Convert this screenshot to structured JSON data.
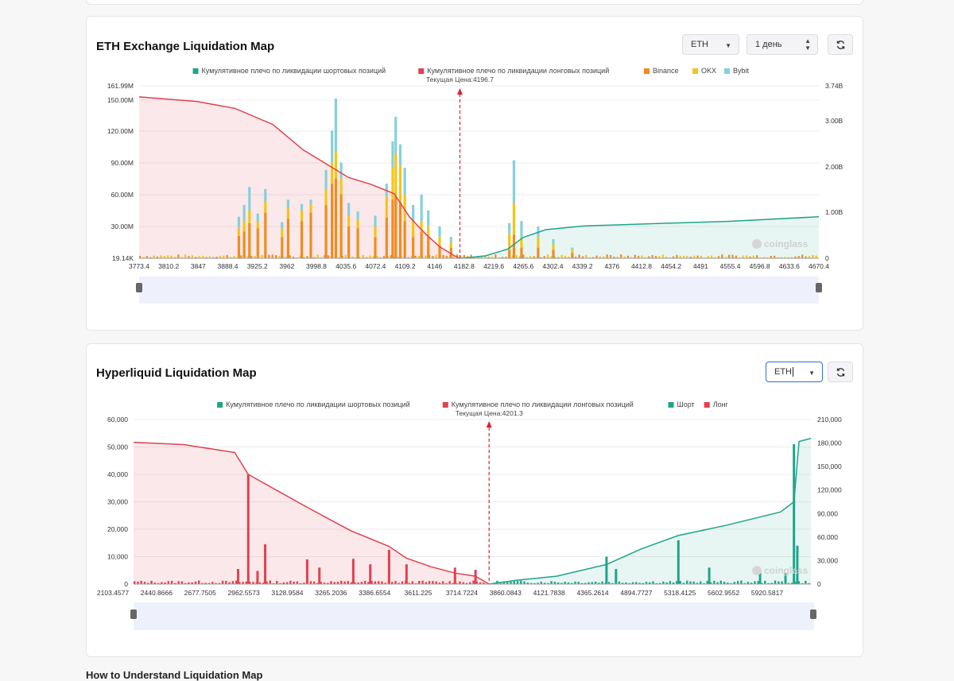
{
  "colors": {
    "short_cum": "#1ea58c",
    "long_cum": "#e0414f",
    "binance": "#f08c1e",
    "okx": "#f5c518",
    "bybit": "#86d0dc",
    "price_line": "#e02030",
    "short_bar": "#1ea58c",
    "long_bar": "#e0414f"
  },
  "icons": {
    "refresh": "refresh-icon",
    "dropdown": "caret-down-icon",
    "stepper": "up-down-stepper-icon",
    "watermark": "coinglass-logo"
  },
  "watermark": "coinglass",
  "bottom_heading": "How to Understand Liquidation Map",
  "charts": [
    {
      "title": "ETH Exchange Liquidation Map",
      "controls": {
        "symbol": "ETH",
        "period": "1 день"
      },
      "legend": [
        {
          "label": "Кумулятивное плечо по ликвидации шортовых позиций",
          "color": "#1ea58c"
        },
        {
          "label": "Кумулятивное плечо по ликвидации лонговых позиций",
          "color": "#e0414f"
        },
        {
          "label": "Binance",
          "color": "#f08c1e"
        },
        {
          "label": "OKX",
          "color": "#f5c518"
        },
        {
          "label": "Bybit",
          "color": "#86d0dc"
        }
      ],
      "current_price_label": "Текущая Цена:4196.7",
      "y_left_ticks": [
        "161.99M",
        "150.00M",
        "120.00M",
        "90.00M",
        "60.00M",
        "30.00M",
        "19.14K"
      ],
      "y_right_ticks": [
        "3.74B",
        "3.00B",
        "2.00B",
        "1.00B",
        "0"
      ],
      "x_ticks": [
        "3773.4",
        "3810.2",
        "3847",
        "3888.4",
        "3925.2",
        "3962",
        "3998.8",
        "4035.6",
        "4072.4",
        "4109.2",
        "4146",
        "4182.8",
        "4219.6",
        "4265.6",
        "4302.4",
        "4339.2",
        "4376",
        "4412.8",
        "4454.2",
        "4491",
        "4555.4",
        "4596.8",
        "4633.6",
        "4670.4"
      ]
    },
    {
      "title": "Hyperliquid Liquidation Map",
      "controls": {
        "symbol": "ETH"
      },
      "legend": [
        {
          "label": "Кумулятивное плечо по ликвидации шортовых позиций",
          "color": "#1ea58c"
        },
        {
          "label": "Кумулятивное плечо по ликвидации лонговых позиций",
          "color": "#e0414f"
        },
        {
          "label": "Шорт",
          "color": "#1ea58c"
        },
        {
          "label": "Лонг",
          "color": "#e0414f"
        }
      ],
      "current_price_label": "Текущая Цена:4201.3",
      "y_left_ticks": [
        "60,000",
        "50,000",
        "40,000",
        "30,000",
        "20,000",
        "10,000",
        "0"
      ],
      "y_right_ticks": [
        "210,000",
        "180,000",
        "150,000",
        "120,000",
        "90,000",
        "60,000",
        "30,000",
        "0"
      ],
      "x_ticks": [
        "2103.4577",
        "2440.8666",
        "2677.7505",
        "2962.5573",
        "3128.9584",
        "3265.2036",
        "3386.6554",
        "3611.225",
        "3714.7224",
        "3860.0843",
        "4121.7838",
        "4365.2614",
        "4894.7727",
        "5318.4125",
        "5602.9552",
        "5920.5817"
      ]
    }
  ],
  "chart_data": [
    {
      "type": "bar",
      "title": "ETH Exchange Liquidation Map",
      "stacked": true,
      "current_price": 4196.7,
      "x_range": [
        3773.4,
        4670.4
      ],
      "ylim_left": [
        0,
        161990000
      ],
      "ylim_right": [
        0,
        3740000000
      ],
      "series": [
        {
          "name": "Binance",
          "bins": [
            [
              3905,
              21
            ],
            [
              3912,
              25
            ],
            [
              3919,
              33
            ],
            [
              3930,
              28
            ],
            [
              3940,
              43
            ],
            [
              3962,
              20
            ],
            [
              3970,
              37
            ],
            [
              3988,
              35
            ],
            [
              4000,
              43
            ],
            [
              4020,
              50
            ],
            [
              4028,
              70
            ],
            [
              4033,
              75
            ],
            [
              4040,
              60
            ],
            [
              4050,
              30
            ],
            [
              4062,
              28
            ],
            [
              4085,
              20
            ],
            [
              4100,
              38
            ],
            [
              4108,
              55
            ],
            [
              4112,
              58
            ],
            [
              4118,
              52
            ],
            [
              4124,
              35
            ],
            [
              4135,
              20
            ],
            [
              4146,
              25
            ],
            [
              4155,
              20
            ],
            [
              4170,
              12
            ],
            [
              4185,
              10
            ],
            [
              4262,
              8
            ],
            [
              4268,
              22
            ],
            [
              4278,
              10
            ],
            [
              4300,
              10
            ],
            [
              4320,
              8
            ],
            [
              4345,
              5
            ]
          ]
        },
        {
          "name": "OKX",
          "bins": [
            [
              3905,
              8
            ],
            [
              3912,
              10
            ],
            [
              3919,
              12
            ],
            [
              3930,
              6
            ],
            [
              3940,
              10
            ],
            [
              3962,
              8
            ],
            [
              3970,
              10
            ],
            [
              3988,
              10
            ],
            [
              4000,
              8
            ],
            [
              4020,
              15
            ],
            [
              4028,
              20
            ],
            [
              4033,
              25
            ],
            [
              4040,
              15
            ],
            [
              4050,
              10
            ],
            [
              4062,
              8
            ],
            [
              4085,
              10
            ],
            [
              4100,
              20
            ],
            [
              4108,
              30
            ],
            [
              4112,
              40
            ],
            [
              4118,
              35
            ],
            [
              4124,
              25
            ],
            [
              4135,
              15
            ],
            [
              4146,
              10
            ],
            [
              4155,
              10
            ],
            [
              4170,
              8
            ],
            [
              4185,
              5
            ],
            [
              4262,
              15
            ],
            [
              4268,
              30
            ],
            [
              4278,
              10
            ],
            [
              4300,
              10
            ],
            [
              4320,
              5
            ],
            [
              4345,
              3
            ]
          ]
        },
        {
          "name": "Bybit",
          "bins": [
            [
              3905,
              10
            ],
            [
              3912,
              15
            ],
            [
              3919,
              22
            ],
            [
              3930,
              8
            ],
            [
              3940,
              12
            ],
            [
              3962,
              6
            ],
            [
              3970,
              8
            ],
            [
              3988,
              6
            ],
            [
              4000,
              4
            ],
            [
              4020,
              18
            ],
            [
              4028,
              30
            ],
            [
              4033,
              50
            ],
            [
              4040,
              15
            ],
            [
              4050,
              12
            ],
            [
              4062,
              8
            ],
            [
              4085,
              10
            ],
            [
              4100,
              12
            ],
            [
              4108,
              25
            ],
            [
              4112,
              35
            ],
            [
              4118,
              20
            ],
            [
              4124,
              25
            ],
            [
              4135,
              15
            ],
            [
              4146,
              25
            ],
            [
              4155,
              15
            ],
            [
              4170,
              10
            ],
            [
              4185,
              5
            ],
            [
              4262,
              10
            ],
            [
              4268,
              40
            ],
            [
              4278,
              15
            ],
            [
              4300,
              10
            ],
            [
              4320,
              5
            ],
            [
              4345,
              2
            ]
          ]
        }
      ],
      "lines": [
        {
          "name": "Кумулятивное плечо по ликвидации лонговых позиций",
          "axis": "right",
          "points": [
            [
              3773.4,
              3500000000.0
            ],
            [
              3850,
              3400000000.0
            ],
            [
              3900,
              3250000000.0
            ],
            [
              3950,
              2900000000.0
            ],
            [
              3990,
              2350000000.0
            ],
            [
              4025,
              2000000000.0
            ],
            [
              4050,
              1750000000.0
            ],
            [
              4080,
              1600000000.0
            ],
            [
              4110,
              1400000000.0
            ],
            [
              4130,
              900000000.0
            ],
            [
              4150,
              550000000.0
            ],
            [
              4170,
              250000000.0
            ],
            [
              4190,
              50000000.0
            ],
            [
              4196.7,
              0
            ]
          ]
        },
        {
          "name": "Кумулятивное плечо по ликвидации шортовых позиций",
          "axis": "right",
          "points": [
            [
              4196.7,
              0
            ],
            [
              4230,
              50000000.0
            ],
            [
              4260,
              200000000.0
            ],
            [
              4280,
              450000000.0
            ],
            [
              4310,
              620000000.0
            ],
            [
              4360,
              700000000.0
            ],
            [
              4450,
              750000000.0
            ],
            [
              4550,
              800000000.0
            ],
            [
              4670.4,
              900000000.0
            ]
          ]
        }
      ]
    },
    {
      "type": "bar",
      "title": "Hyperliquid Liquidation Map",
      "current_price": 4201.3,
      "x_range": [
        2103.4577,
        6100
      ],
      "ylim_left": [
        0,
        60000
      ],
      "ylim_right": [
        0,
        210000
      ],
      "series": [
        {
          "name": "Лонг",
          "bins": [
            [
              2720,
              5500
            ],
            [
              2780,
              40000
            ],
            [
              2835,
              4800
            ],
            [
              2880,
              14500
            ],
            [
              3128,
              9000
            ],
            [
              3200,
              6000
            ],
            [
              3400,
              9200
            ],
            [
              3500,
              7200
            ],
            [
              3611,
              12500
            ],
            [
              3714,
              7200
            ],
            [
              4000,
              6000
            ],
            [
              4121,
              5200
            ]
          ]
        },
        {
          "name": "Шорт",
          "bins": [
            [
              4894,
              10000
            ],
            [
              4950,
              5500
            ],
            [
              5318,
              16000
            ],
            [
              5500,
              6000
            ],
            [
              5800,
              5000
            ],
            [
              5950,
              4000
            ],
            [
              6000,
              51000
            ],
            [
              6020,
              14000
            ]
          ]
        }
      ],
      "lines": [
        {
          "name": "Кумулятивное плечо по ликвидации лонговых позиций",
          "axis": "right",
          "points": [
            [
              2103.46,
              181000
            ],
            [
              2400,
              178000
            ],
            [
              2700,
              168000
            ],
            [
              2780,
              140000
            ],
            [
              2962,
              118000
            ],
            [
              3128,
              98000
            ],
            [
              3265,
              82000
            ],
            [
              3386,
              68000
            ],
            [
              3611,
              48000
            ],
            [
              3714,
              33000
            ],
            [
              3860,
              22000
            ],
            [
              4000,
              14000
            ],
            [
              4121,
              10000
            ],
            [
              4201.3,
              0
            ]
          ]
        },
        {
          "name": "Кумулятивное плечо по ликвидации шортовых позиций",
          "axis": "right",
          "points": [
            [
              4201.3,
              0
            ],
            [
              4365,
              5000
            ],
            [
              4600,
              10000
            ],
            [
              4894,
              25000
            ],
            [
              5100,
              45000
            ],
            [
              5318,
              62000
            ],
            [
              5600,
              75000
            ],
            [
              5920,
              92000
            ],
            [
              6000,
              105000
            ],
            [
              6030,
              182000
            ],
            [
              6100,
              186000
            ]
          ]
        }
      ]
    }
  ]
}
